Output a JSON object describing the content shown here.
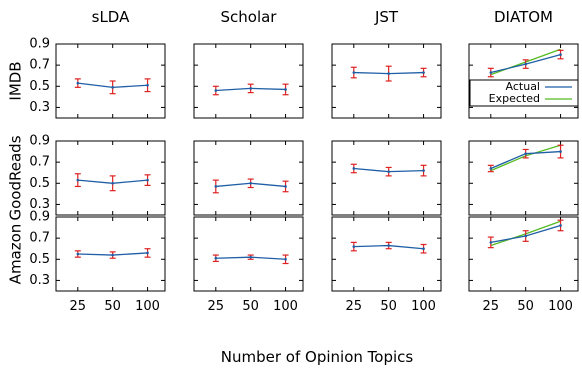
{
  "chart_data": {
    "type": "line",
    "xlabel": "Number of Opinion Topics",
    "x": [
      25,
      50,
      100
    ],
    "x_ticks": [
      "25",
      "50",
      "100"
    ],
    "ylim": [
      0.2,
      0.9
    ],
    "y_ticks": [
      "0.9",
      "0.7",
      "0.5",
      "0.3"
    ],
    "y_tick_values": [
      0.9,
      0.7,
      0.5,
      0.3
    ],
    "models": [
      "sLDA",
      "Scholar",
      "JST",
      "DIATOM"
    ],
    "datasets": [
      "IMDB",
      "GoodReads",
      "Amazon"
    ],
    "legend": {
      "entries": [
        "Actual",
        "Expected"
      ],
      "placement": "lower-right of IMDB / DIATOM panel"
    },
    "colors": {
      "actual": "#1f5fa6",
      "expected": "#55bb22",
      "error_bar": "#dd2222"
    },
    "panels": [
      {
        "dataset": "IMDB",
        "model": "sLDA",
        "series": [
          {
            "name": "Actual",
            "values": [
              0.53,
              0.49,
              0.51
            ],
            "errors": [
              0.04,
              0.06,
              0.06
            ]
          }
        ]
      },
      {
        "dataset": "IMDB",
        "model": "Scholar",
        "series": [
          {
            "name": "Actual",
            "values": [
              0.46,
              0.48,
              0.47
            ],
            "errors": [
              0.04,
              0.04,
              0.05
            ]
          }
        ]
      },
      {
        "dataset": "IMDB",
        "model": "JST",
        "series": [
          {
            "name": "Actual",
            "values": [
              0.63,
              0.62,
              0.63
            ],
            "errors": [
              0.05,
              0.07,
              0.04
            ]
          }
        ]
      },
      {
        "dataset": "IMDB",
        "model": "DIATOM",
        "series": [
          {
            "name": "Actual",
            "values": [
              0.63,
              0.71,
              0.8
            ],
            "errors": [
              0.04,
              0.04,
              0.04
            ]
          },
          {
            "name": "Expected",
            "values": [
              0.61,
              0.73,
              0.85
            ]
          }
        ]
      },
      {
        "dataset": "GoodReads",
        "model": "sLDA",
        "series": [
          {
            "name": "Actual",
            "values": [
              0.53,
              0.5,
              0.53
            ],
            "errors": [
              0.06,
              0.07,
              0.05
            ]
          }
        ]
      },
      {
        "dataset": "GoodReads",
        "model": "Scholar",
        "series": [
          {
            "name": "Actual",
            "values": [
              0.47,
              0.5,
              0.47
            ],
            "errors": [
              0.06,
              0.04,
              0.05
            ]
          }
        ]
      },
      {
        "dataset": "GoodReads",
        "model": "JST",
        "series": [
          {
            "name": "Actual",
            "values": [
              0.64,
              0.61,
              0.62
            ],
            "errors": [
              0.04,
              0.04,
              0.05
            ]
          }
        ]
      },
      {
        "dataset": "GoodReads",
        "model": "DIATOM",
        "series": [
          {
            "name": "Actual",
            "values": [
              0.64,
              0.78,
              0.8
            ],
            "errors": [
              0.03,
              0.04,
              0.06
            ]
          },
          {
            "name": "Expected",
            "values": [
              0.62,
              0.76,
              0.86
            ]
          }
        ]
      },
      {
        "dataset": "Amazon",
        "model": "sLDA",
        "series": [
          {
            "name": "Actual",
            "values": [
              0.55,
              0.54,
              0.56
            ],
            "errors": [
              0.03,
              0.03,
              0.04
            ]
          }
        ]
      },
      {
        "dataset": "Amazon",
        "model": "Scholar",
        "series": [
          {
            "name": "Actual",
            "values": [
              0.51,
              0.52,
              0.5
            ],
            "errors": [
              0.03,
              0.02,
              0.04
            ]
          }
        ]
      },
      {
        "dataset": "Amazon",
        "model": "JST",
        "series": [
          {
            "name": "Actual",
            "values": [
              0.62,
              0.63,
              0.6
            ],
            "errors": [
              0.04,
              0.03,
              0.04
            ]
          }
        ]
      },
      {
        "dataset": "Amazon",
        "model": "DIATOM",
        "series": [
          {
            "name": "Actual",
            "values": [
              0.66,
              0.72,
              0.82
            ],
            "errors": [
              0.05,
              0.05,
              0.05
            ]
          },
          {
            "name": "Expected",
            "values": [
              0.63,
              0.74,
              0.86
            ]
          }
        ]
      }
    ]
  }
}
